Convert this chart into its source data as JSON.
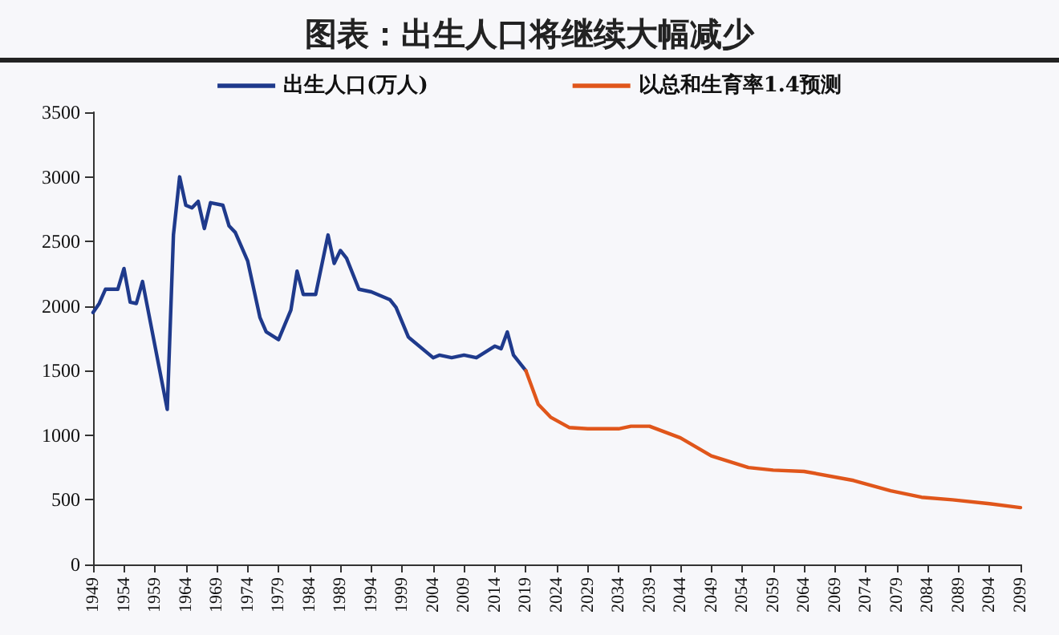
{
  "chart_data": {
    "type": "line",
    "title": "图表：出生人口将继续大幅减少",
    "series": [
      {
        "name": "出生人口(万人)",
        "color": "#1f3a8c",
        "x": [
          1949,
          1950,
          1951,
          1953,
          1954,
          1955,
          1956,
          1957,
          1961,
          1962,
          1963,
          1964,
          1965,
          1966,
          1967,
          1968,
          1970,
          1971,
          1972,
          1974,
          1976,
          1977,
          1979,
          1981,
          1982,
          1983,
          1985,
          1987,
          1988,
          1989,
          1990,
          1992,
          1994,
          1997,
          1998,
          2000,
          2004,
          2005,
          2007,
          2009,
          2011,
          2014,
          2015,
          2016,
          2017,
          2019
        ],
        "values": [
          1950,
          2020,
          2130,
          2130,
          2290,
          2030,
          2020,
          2190,
          1200,
          2550,
          3000,
          2780,
          2760,
          2810,
          2600,
          2800,
          2780,
          2620,
          2570,
          2350,
          1910,
          1800,
          1740,
          1970,
          2270,
          2090,
          2090,
          2550,
          2330,
          2430,
          2370,
          2130,
          2110,
          2050,
          1990,
          1760,
          1600,
          1620,
          1600,
          1620,
          1600,
          1690,
          1670,
          1800,
          1620,
          1500
        ]
      },
      {
        "name": "以总和生育率1.4预测",
        "color": "#e0561b",
        "x": [
          2019,
          2021,
          2023,
          2026,
          2029,
          2034,
          2036,
          2039,
          2044,
          2049,
          2055,
          2059,
          2064,
          2072,
          2078,
          2083,
          2088,
          2094,
          2099
        ],
        "values": [
          1500,
          1240,
          1140,
          1060,
          1050,
          1050,
          1070,
          1070,
          980,
          840,
          750,
          730,
          720,
          650,
          570,
          520,
          500,
          470,
          440
        ]
      }
    ],
    "xlim": [
      1949,
      2099
    ],
    "xticks": [
      1949,
      1954,
      1959,
      1964,
      1969,
      1974,
      1979,
      1984,
      1989,
      1994,
      1999,
      2004,
      2009,
      2014,
      2019,
      2024,
      2029,
      2034,
      2039,
      2044,
      2049,
      2054,
      2059,
      2064,
      2069,
      2074,
      2079,
      2084,
      2089,
      2094,
      2099
    ],
    "ylim": [
      0,
      3500
    ],
    "yticks": [
      0,
      500,
      1000,
      1500,
      2000,
      2500,
      3000,
      3500
    ],
    "grid": false,
    "legend": "top",
    "marker": "none",
    "line_style": "solid"
  }
}
